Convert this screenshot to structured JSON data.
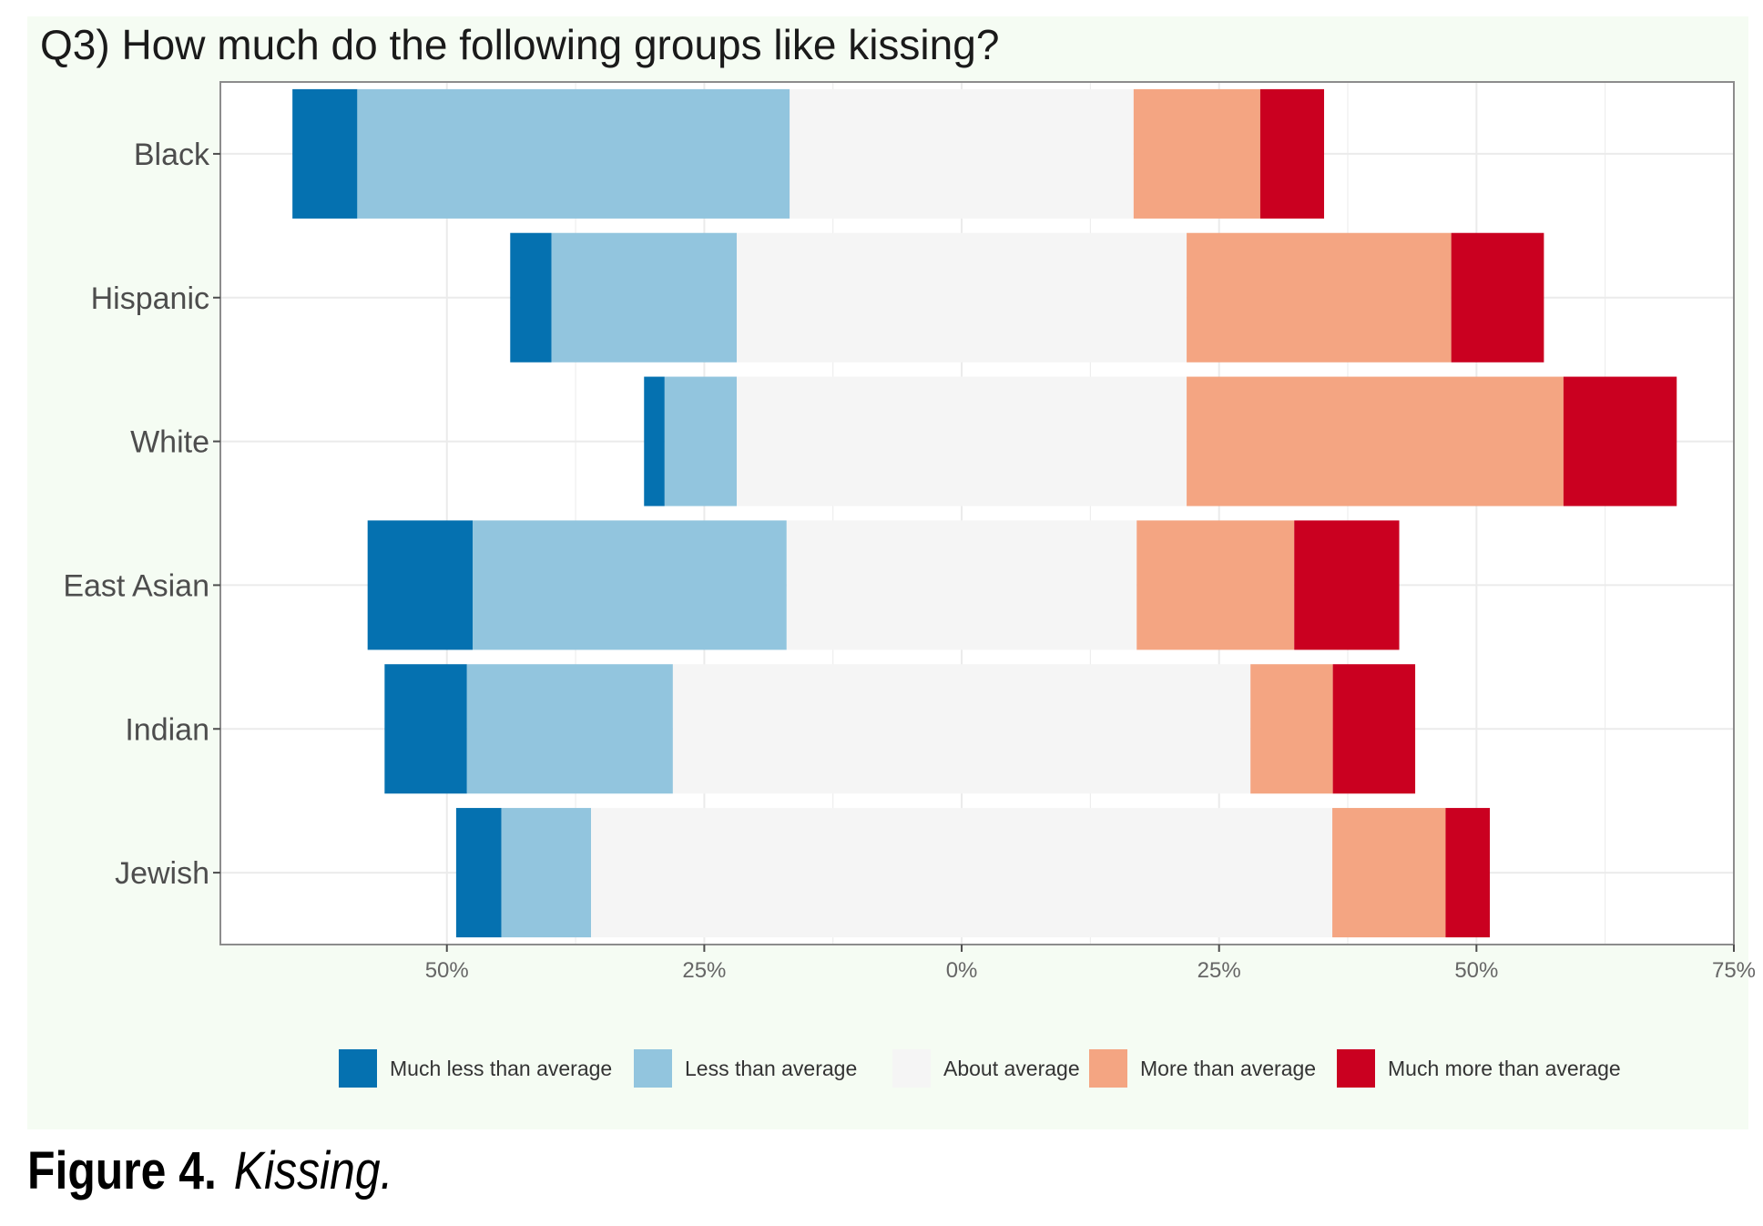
{
  "caption": {
    "label": "Figure 4.",
    "text": "Kissing."
  },
  "colors": {
    "panel_bg": "#f5fcf3",
    "plot_bg": "#ffffff",
    "grid": "#ebebeb",
    "much_less": "#0571b0",
    "less": "#92c5de",
    "about": "#f5f5f5",
    "more": "#f4a582",
    "much_more": "#ca0020"
  },
  "chart_data": {
    "type": "bar",
    "subtype": "diverging-stacked-horizontal",
    "title": "Q3) How much do the following groups like kissing?",
    "xlabel": "",
    "ylabel": "",
    "categories": [
      "Black",
      "Hispanic",
      "White",
      "East Asian",
      "Indian",
      "Jewish"
    ],
    "xlim": [
      -72,
      75
    ],
    "x_ticks": [
      {
        "value": -50,
        "label": "50%"
      },
      {
        "value": -25,
        "label": "25%"
      },
      {
        "value": 0,
        "label": "0%"
      },
      {
        "value": 25,
        "label": "25%"
      },
      {
        "value": 50,
        "label": "50%"
      },
      {
        "value": 75,
        "label": "75%"
      }
    ],
    "grid": true,
    "legend_position": "bottom",
    "series": [
      {
        "name": "Much less than average",
        "values": [
          6.3,
          4.0,
          2.0,
          10.2,
          8.0,
          4.4
        ]
      },
      {
        "name": "Less than average",
        "values": [
          42.0,
          18.0,
          7.0,
          30.5,
          20.0,
          8.7
        ]
      },
      {
        "name": "About average",
        "values": [
          33.4,
          43.7,
          43.7,
          34.0,
          56.1,
          72.0
        ]
      },
      {
        "name": "More than average",
        "values": [
          12.3,
          25.7,
          36.6,
          15.3,
          8.0,
          11.0
        ]
      },
      {
        "name": "Much more than average",
        "values": [
          6.2,
          9.0,
          11.0,
          10.2,
          8.0,
          4.3
        ]
      }
    ]
  }
}
